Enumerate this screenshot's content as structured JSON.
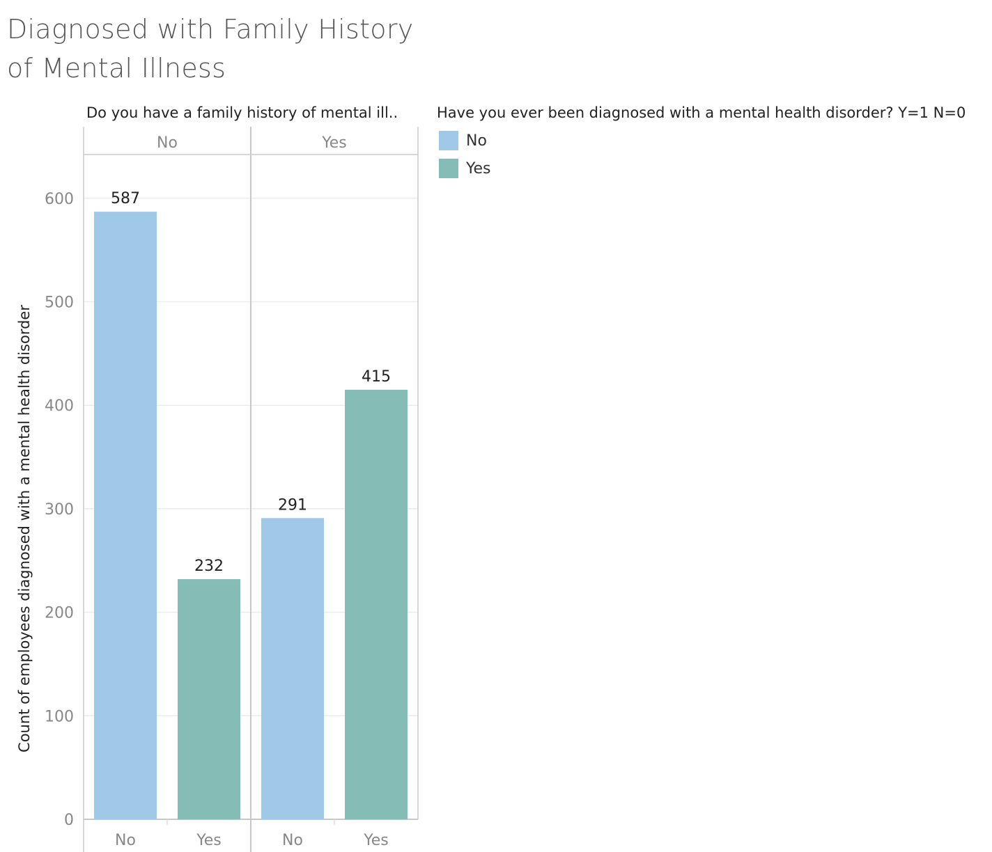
{
  "chart_data": {
    "type": "bar",
    "title": "Diagnosed with Family History of Mental Illness",
    "column_header_title": "Do you have a family history of mental ill..",
    "ylabel": "Count of employees diagnosed with a mental health disorder",
    "ylim": [
      0,
      650
    ],
    "yticks": [
      0,
      100,
      200,
      300,
      400,
      500,
      600
    ],
    "grid": true,
    "legend": {
      "title": "Have you ever been diagnosed with a mental health disorder? Y=1 N=0",
      "placement": "right",
      "items": [
        {
          "label": "No",
          "color": "#a0c8e7"
        },
        {
          "label": "Yes",
          "color": "#86bcb6"
        }
      ]
    },
    "panes": [
      {
        "label": "No",
        "categories": [
          "No",
          "Yes"
        ],
        "values": [
          587,
          232
        ]
      },
      {
        "label": "Yes",
        "categories": [
          "No",
          "Yes"
        ],
        "values": [
          291,
          415
        ]
      }
    ],
    "series_colors": {
      "No": "#a0c8e7",
      "Yes": "#86bcb6"
    }
  }
}
